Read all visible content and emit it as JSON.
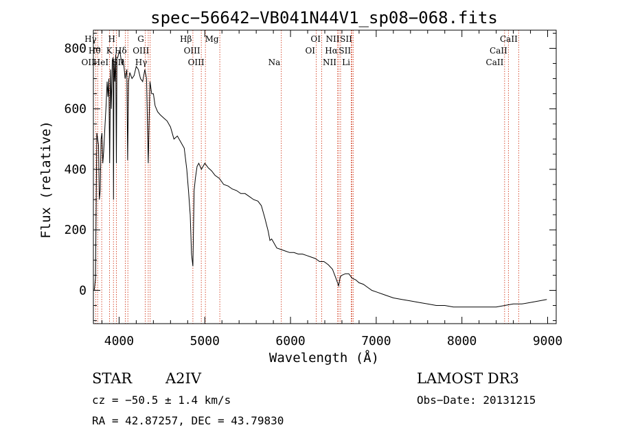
{
  "chart_data": {
    "type": "line",
    "title": "spec−56642−VB041N44V1_sp08−068.fits",
    "xlabel": "Wavelength (Å)",
    "ylabel": "Flux (relative)",
    "xlim": [
      3700,
      9100
    ],
    "ylim": [
      -110,
      860
    ],
    "xticks": [
      4000,
      5000,
      6000,
      7000,
      8000,
      9000
    ],
    "xtick_labels": [
      "4000",
      "5000",
      "6000",
      "7000",
      "8000",
      "9000"
    ],
    "yticks": [
      0,
      200,
      400,
      600,
      800
    ],
    "ytick_labels": [
      "0",
      "200",
      "400",
      "600",
      "800"
    ],
    "x_minor_step": 200,
    "y_minor_step": 50,
    "grid": false,
    "spectrum": {
      "x": [
        3710,
        3725,
        3740,
        3760,
        3770,
        3780,
        3790,
        3800,
        3810,
        3820,
        3835,
        3850,
        3860,
        3870,
        3880,
        3890,
        3900,
        3910,
        3920,
        3930,
        3935,
        3940,
        3950,
        3960,
        3968,
        3975,
        3985,
        4000,
        4015,
        4030,
        4050,
        4070,
        4090,
        4100,
        4110,
        4125,
        4150,
        4175,
        4200,
        4225,
        4250,
        4275,
        4300,
        4320,
        4340,
        4360,
        4380,
        4400,
        4420,
        4450,
        4480,
        4520,
        4560,
        4600,
        4640,
        4680,
        4720,
        4760,
        4790,
        4810,
        4830,
        4845,
        4861,
        4875,
        4890,
        4910,
        4930,
        4960,
        5000,
        5040,
        5080,
        5120,
        5170,
        5220,
        5270,
        5320,
        5370,
        5420,
        5470,
        5520,
        5570,
        5620,
        5660,
        5700,
        5740,
        5760,
        5780,
        5800,
        5840,
        5890,
        5940,
        5990,
        6040,
        6090,
        6140,
        6190,
        6240,
        6290,
        6340,
        6390,
        6440,
        6490,
        6530,
        6562,
        6580,
        6600,
        6640,
        6680,
        6720,
        6760,
        6800,
        6850,
        6900,
        6950,
        7000,
        7100,
        7200,
        7300,
        7400,
        7500,
        7600,
        7700,
        7800,
        7900,
        8000,
        8100,
        8200,
        8300,
        8400,
        8500,
        8600,
        8700,
        8800,
        8900,
        8990
      ],
      "y": [
        0,
        40,
        520,
        480,
        300,
        330,
        500,
        520,
        420,
        460,
        540,
        620,
        690,
        640,
        700,
        420,
        730,
        600,
        760,
        770,
        300,
        760,
        690,
        780,
        420,
        770,
        770,
        790,
        780,
        750,
        760,
        700,
        730,
        430,
        690,
        720,
        700,
        710,
        740,
        730,
        700,
        690,
        730,
        700,
        420,
        690,
        650,
        650,
        610,
        590,
        580,
        570,
        560,
        540,
        500,
        510,
        490,
        470,
        400,
        330,
        250,
        120,
        80,
        330,
        370,
        410,
        420,
        400,
        420,
        405,
        395,
        380,
        370,
        350,
        345,
        335,
        330,
        320,
        320,
        310,
        300,
        295,
        280,
        240,
        195,
        165,
        170,
        160,
        140,
        135,
        130,
        125,
        125,
        120,
        120,
        115,
        110,
        105,
        95,
        95,
        85,
        70,
        40,
        15,
        45,
        50,
        55,
        55,
        40,
        35,
        25,
        20,
        10,
        0,
        -5,
        -15,
        -25,
        -30,
        -35,
        -40,
        -45,
        -50,
        -50,
        -55,
        -55,
        -55,
        -55,
        -55,
        -55,
        -50,
        -45,
        -45,
        -40,
        -35,
        -30
      ]
    },
    "lines": [
      {
        "label": "Hγ",
        "lambda": 3750,
        "row": 1
      },
      {
        "label": "Hθ",
        "lambda": 3797,
        "row": 2
      },
      {
        "label": "OII",
        "lambda": 3727,
        "row": 3
      },
      {
        "label": "H",
        "lambda": 3968,
        "row": 1
      },
      {
        "label": "K",
        "lambda": 3934,
        "row": 2
      },
      {
        "label": "HeI",
        "lambda": 3889,
        "row": 3
      },
      {
        "label": "Hδ",
        "lambda": 4102,
        "row": 2
      },
      {
        "label": "SII",
        "lambda": 4072,
        "row": 3
      },
      {
        "label": "G",
        "lambda": 4304,
        "row": 1
      },
      {
        "label": "OIII",
        "lambda": 4363,
        "row": 2
      },
      {
        "label": "Hγ",
        "lambda": 4340,
        "row": 3
      },
      {
        "label": "Hβ",
        "lambda": 4861,
        "row": 1
      },
      {
        "label": "OIII",
        "lambda": 4959,
        "row": 2
      },
      {
        "label": "OIII",
        "lambda": 5007,
        "row": 3
      },
      {
        "label": "Mg",
        "lambda": 5175,
        "row": 1
      },
      {
        "label": "Na",
        "lambda": 5893,
        "row": 3
      },
      {
        "label": "OI",
        "lambda": 6364,
        "row": 1
      },
      {
        "label": "OI",
        "lambda": 6300,
        "row": 2
      },
      {
        "label": "NII",
        "lambda": 6584,
        "row": 1
      },
      {
        "label": "Hα",
        "lambda": 6563,
        "row": 2
      },
      {
        "label": "NII",
        "lambda": 6548,
        "row": 3
      },
      {
        "label": "SII",
        "lambda": 6731,
        "row": 1
      },
      {
        "label": "SII",
        "lambda": 6717,
        "row": 2
      },
      {
        "label": "Li",
        "lambda": 6708,
        "row": 3
      },
      {
        "label": "CaII",
        "lambda": 8662,
        "row": 1
      },
      {
        "label": "CaII",
        "lambda": 8542,
        "row": 2
      },
      {
        "label": "CaII",
        "lambda": 8498,
        "row": 3
      }
    ]
  },
  "info": {
    "class": "STAR",
    "subclass": "A2IV",
    "survey": "LAMOST DR3",
    "cz": "cz = −50.5 ± 1.4 km/s",
    "obs_date": "Obs−Date: 20131215",
    "coords": "RA =  42.87257, DEC =  43.79830"
  },
  "colors": {
    "axis": "#000000",
    "spectrum": "#000000",
    "line_marker": "#cc2200",
    "background": "#ffffff"
  }
}
